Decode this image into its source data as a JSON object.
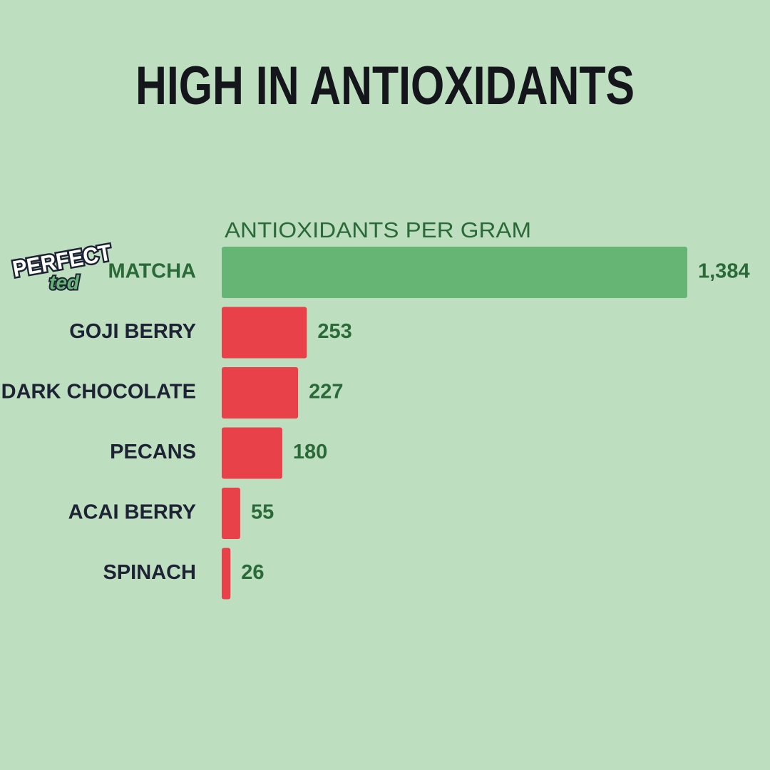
{
  "brand": {
    "name": "PERFECT",
    "sub": "ted"
  },
  "chart_data": {
    "type": "hbar",
    "title": "HIGH IN ANTIOXIDANTS",
    "subtitle": "ANTIOXIDANTS PER GRAM",
    "categories": [
      "MATCHA",
      "GOJI BERRY",
      "DARK CHOCOLATE",
      "PECANS",
      "ACAI BERRY",
      "SPINACH"
    ],
    "values": [
      1384,
      253,
      227,
      180,
      55,
      26
    ],
    "value_labels": [
      "1,384",
      "253",
      "227",
      "180",
      "55",
      "26"
    ],
    "colors": [
      "#66b574",
      "#e8414a",
      "#e8414a",
      "#e8414a",
      "#e8414a",
      "#e8414a"
    ],
    "label_colors": [
      "#2a6a38",
      "#1d2234",
      "#1d2234",
      "#1d2234",
      "#1d2234",
      "#1d2234"
    ],
    "xlim": [
      0,
      1384
    ]
  }
}
